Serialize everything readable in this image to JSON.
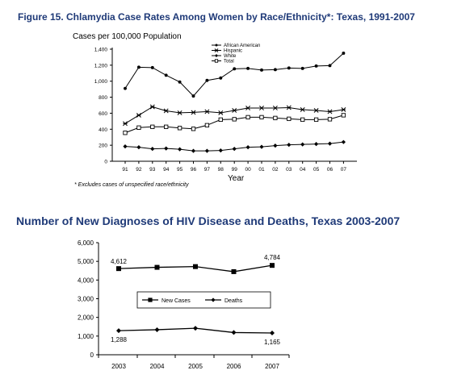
{
  "chart_data": [
    {
      "type": "line",
      "title": "Figure 15. Chlamydia Case Rates Among Women by Race/Ethnicity*: Texas, 1991-2007",
      "ylabel": "Cases per 100,000 Population",
      "xlabel": "Year",
      "footnote": "* Excludes cases of unspecified race/ethnicity",
      "categories": [
        "91",
        "92",
        "93",
        "94",
        "95",
        "96",
        "97",
        "98",
        "99",
        "00",
        "01",
        "02",
        "03",
        "04",
        "05",
        "06",
        "07"
      ],
      "yticks": [
        "0",
        "200",
        "400",
        "600",
        "800",
        "1,000",
        "1,200",
        "1,400"
      ],
      "ylim": [
        0,
        1400
      ],
      "grid": false,
      "legend_position": "top-right",
      "series": [
        {
          "name": "African American",
          "marker": "filled-circle",
          "values": [
            910,
            1175,
            1170,
            1075,
            990,
            815,
            1010,
            1040,
            1155,
            1160,
            1140,
            1145,
            1165,
            1160,
            1190,
            1195,
            1350
          ]
        },
        {
          "name": "Hispanic",
          "marker": "asterisk",
          "values": [
            470,
            575,
            680,
            630,
            605,
            610,
            620,
            605,
            635,
            665,
            665,
            665,
            670,
            645,
            635,
            620,
            645
          ]
        },
        {
          "name": "White",
          "marker": "diamond",
          "values": [
            185,
            175,
            155,
            160,
            150,
            130,
            130,
            135,
            155,
            175,
            180,
            195,
            205,
            210,
            215,
            220,
            240
          ]
        },
        {
          "name": "Total",
          "marker": "open-square",
          "values": [
            355,
            420,
            430,
            430,
            415,
            405,
            450,
            520,
            525,
            550,
            550,
            540,
            530,
            520,
            520,
            525,
            575
          ]
        }
      ]
    },
    {
      "type": "line",
      "title": "Number of New Diagnoses of HIV Disease and Deaths, Texas 2003-2007",
      "categories": [
        "2003",
        "2004",
        "2005",
        "2006",
        "2007"
      ],
      "yticks": [
        "0",
        "1,000",
        "2,000",
        "3,000",
        "4,000",
        "5,000",
        "6,000"
      ],
      "ylim": [
        0,
        6000
      ],
      "grid": false,
      "legend_position": "center",
      "series": [
        {
          "name": "New Cases",
          "marker": "filled-square",
          "values": [
            4612,
            4680,
            4720,
            4450,
            4784
          ]
        },
        {
          "name": "Deaths",
          "marker": "diamond",
          "values": [
            1288,
            1340,
            1420,
            1190,
            1165
          ]
        }
      ],
      "data_labels": [
        {
          "series": "New Cases",
          "category": "2003",
          "text": "4,612"
        },
        {
          "series": "New Cases",
          "category": "2007",
          "text": "4,784"
        },
        {
          "series": "Deaths",
          "category": "2003",
          "text": "1,288"
        },
        {
          "series": "Deaths",
          "category": "2007",
          "text": "1,165"
        }
      ]
    }
  ],
  "colors": {
    "title": "#1f3a78",
    "line": "#000000",
    "axis": "#000000"
  }
}
